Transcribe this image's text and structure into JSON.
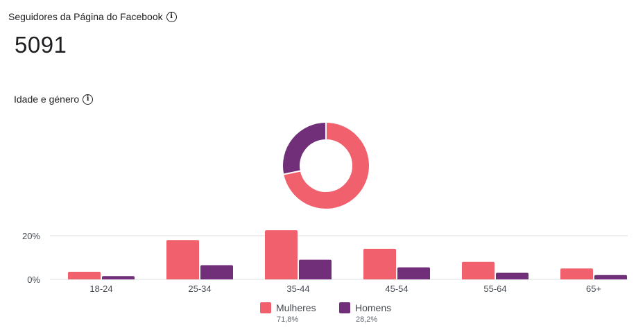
{
  "header": {
    "title": "Seguidores da Página do Facebook",
    "info_icon": "info-icon",
    "total": "5091"
  },
  "section": {
    "title": "Idade e género",
    "info_icon": "info-icon"
  },
  "colors": {
    "women": "#f0616d",
    "men": "#712f79",
    "grid": "#dadde1"
  },
  "legend": [
    {
      "name": "Mulheres",
      "pct": "71,8%"
    },
    {
      "name": "Homens",
      "pct": "28,2%"
    }
  ],
  "chart_data": [
    {
      "type": "pie",
      "variant": "donut",
      "slices": [
        {
          "name": "Mulheres",
          "value": 71.8
        },
        {
          "name": "Homens",
          "value": 28.2
        }
      ]
    },
    {
      "type": "bar",
      "categories": [
        "18-24",
        "25-34",
        "35-44",
        "45-54",
        "55-64",
        "65+"
      ],
      "series": [
        {
          "name": "Mulheres",
          "values": [
            3.5,
            18,
            22.5,
            14,
            8,
            5
          ]
        },
        {
          "name": "Homens",
          "values": [
            1.5,
            6.5,
            9,
            5.5,
            3,
            2
          ]
        }
      ],
      "yticks": [
        "0%",
        "20%"
      ],
      "ylim": [
        0,
        23
      ],
      "grid": true
    }
  ]
}
